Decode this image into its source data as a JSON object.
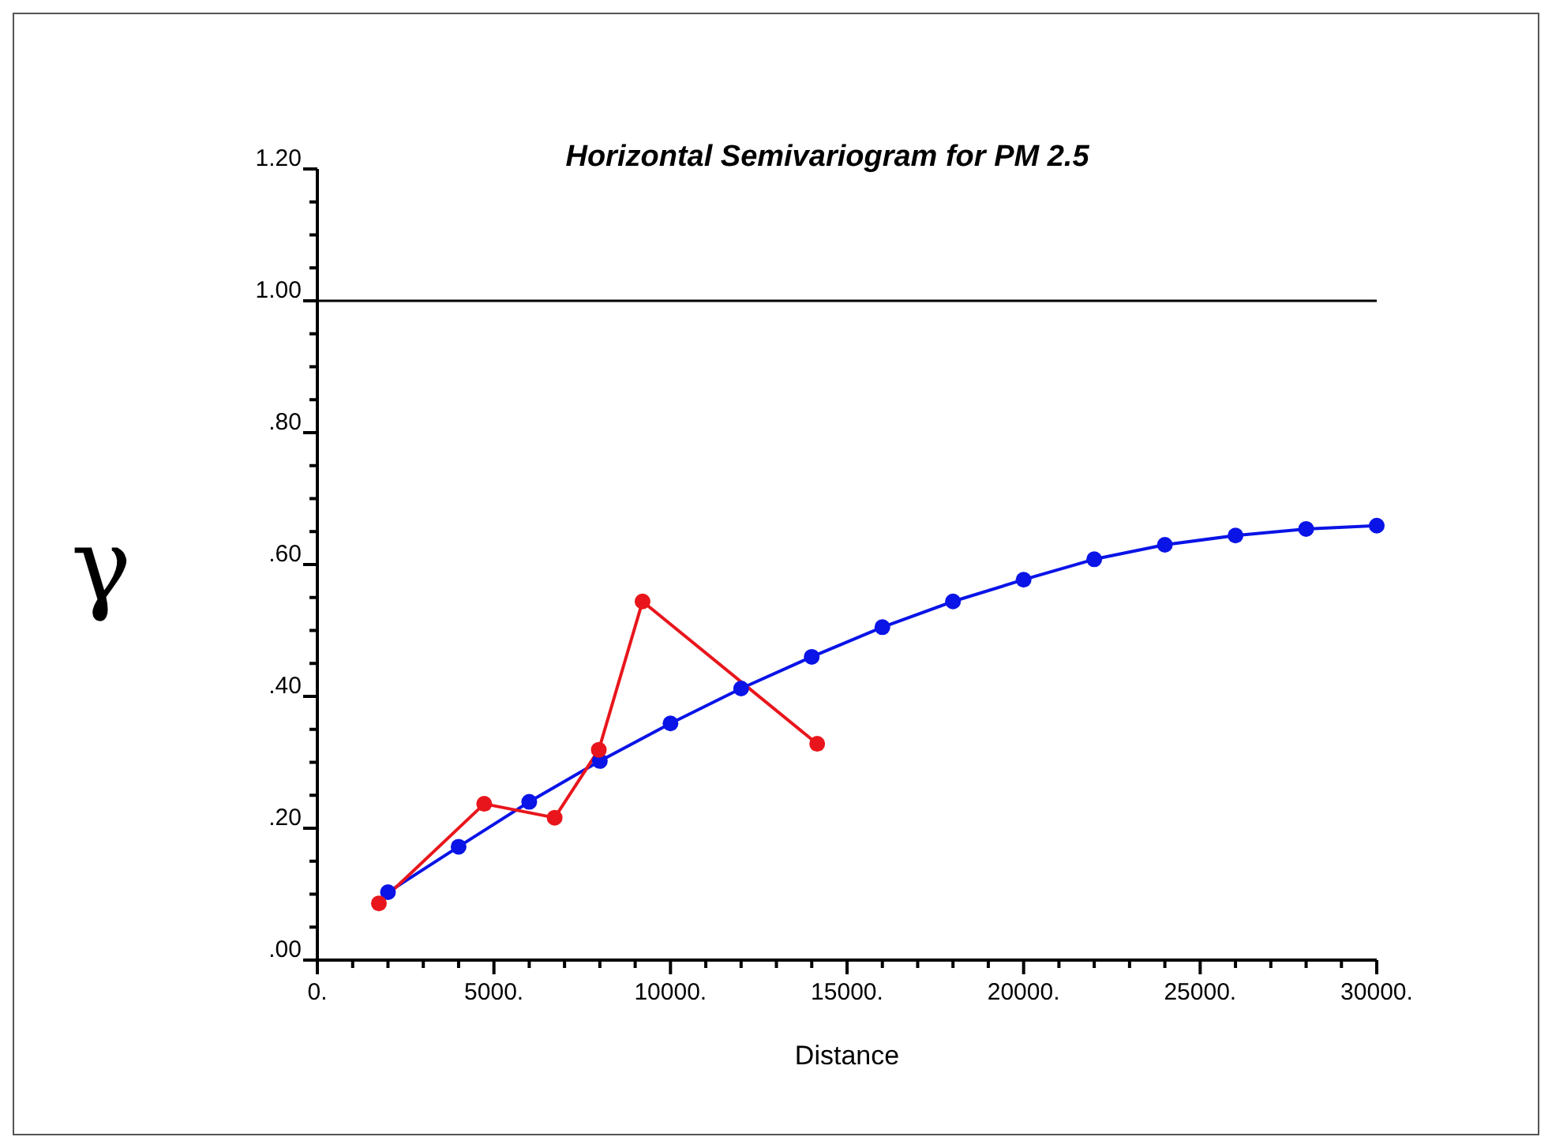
{
  "chart_data": {
    "type": "line",
    "title": "Horizontal Semivariogram for PM 2.5",
    "xlabel": "Distance",
    "ylabel": "γ",
    "series": [
      {
        "color": "#0a14e6",
        "x": [
          2000,
          4000,
          6000,
          8000,
          10000,
          12000,
          14000,
          16000,
          18000,
          20000,
          22000,
          24000,
          26000,
          28000,
          30000
        ],
        "values": [
          0.103,
          0.172,
          0.24,
          0.302,
          0.359,
          0.412,
          0.46,
          0.505,
          0.544,
          0.577,
          0.608,
          0.63,
          0.644,
          0.654,
          0.659
        ]
      },
      {
        "color": "#e8161c",
        "x": [
          1743,
          4725,
          6720,
          7970,
          9209,
          14155
        ],
        "values": [
          0.086,
          0.237,
          0.216,
          0.319,
          0.544,
          0.328
        ]
      }
    ],
    "xlim": [
      0,
      30000
    ],
    "xticks": [
      {
        "value": 0,
        "label": "0."
      },
      {
        "value": 1000,
        "label": null
      },
      {
        "value": 2000,
        "label": null
      },
      {
        "value": 3000,
        "label": null
      },
      {
        "value": 4000,
        "label": null
      },
      {
        "value": 5000,
        "label": "5000."
      },
      {
        "value": 6000,
        "label": null
      },
      {
        "value": 7000,
        "label": null
      },
      {
        "value": 8000,
        "label": null
      },
      {
        "value": 9000,
        "label": null
      },
      {
        "value": 10000,
        "label": "10000."
      },
      {
        "value": 11000,
        "label": null
      },
      {
        "value": 12000,
        "label": null
      },
      {
        "value": 13000,
        "label": null
      },
      {
        "value": 14000,
        "label": null
      },
      {
        "value": 15000,
        "label": "15000."
      },
      {
        "value": 16000,
        "label": null
      },
      {
        "value": 17000,
        "label": null
      },
      {
        "value": 18000,
        "label": null
      },
      {
        "value": 19000,
        "label": null
      },
      {
        "value": 20000,
        "label": "20000."
      },
      {
        "value": 21000,
        "label": null
      },
      {
        "value": 22000,
        "label": null
      },
      {
        "value": 23000,
        "label": null
      },
      {
        "value": 24000,
        "label": null
      },
      {
        "value": 25000,
        "label": "25000."
      },
      {
        "value": 26000,
        "label": null
      },
      {
        "value": 27000,
        "label": null
      },
      {
        "value": 28000,
        "label": null
      },
      {
        "value": 29000,
        "label": null
      },
      {
        "value": 30000,
        "label": "30000."
      }
    ],
    "ylim": [
      0,
      1.2
    ],
    "yticks": [
      {
        "value": 0,
        "label": ".00"
      },
      {
        "value": 0.05,
        "label": null
      },
      {
        "value": 0.1,
        "label": null
      },
      {
        "value": 0.15,
        "label": null
      },
      {
        "value": 0.2,
        "label": ".20"
      },
      {
        "value": 0.25,
        "label": null
      },
      {
        "value": 0.3,
        "label": null
      },
      {
        "value": 0.35,
        "label": null
      },
      {
        "value": 0.4,
        "label": ".40"
      },
      {
        "value": 0.45,
        "label": null
      },
      {
        "value": 0.5,
        "label": null
      },
      {
        "value": 0.55,
        "label": null
      },
      {
        "value": 0.6,
        "label": ".60"
      },
      {
        "value": 0.65,
        "label": null
      },
      {
        "value": 0.7,
        "label": null
      },
      {
        "value": 0.75,
        "label": null
      },
      {
        "value": 0.8,
        "label": ".80"
      },
      {
        "value": 0.85,
        "label": null
      },
      {
        "value": 0.9,
        "label": null
      },
      {
        "value": 0.95,
        "label": null
      },
      {
        "value": 1,
        "label": "1.00"
      },
      {
        "value": 1.05,
        "label": null
      },
      {
        "value": 1.1,
        "label": null
      },
      {
        "value": 1.15,
        "label": null
      },
      {
        "value": 1.2,
        "label": "1.20"
      }
    ],
    "ref_lines": [
      {
        "axis": "y",
        "value": 1,
        "color": "#000000"
      }
    ],
    "marker": "circle"
  }
}
